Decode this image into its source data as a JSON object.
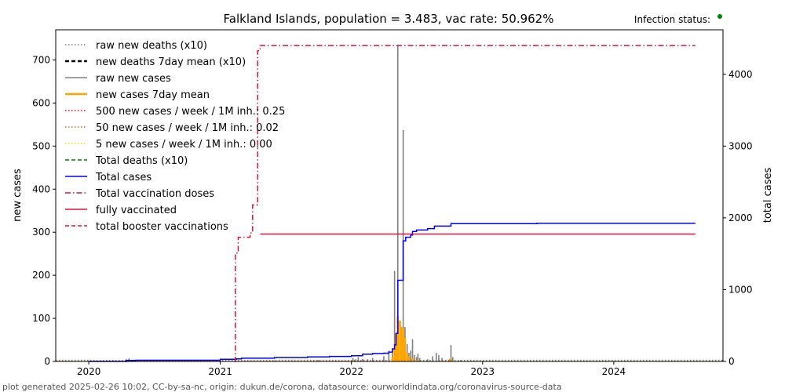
{
  "chart_data": {
    "type": "line",
    "title": "Falkland Islands, population = 3.483, vac rate: 50.962%",
    "status_label": "Infection status:",
    "status_color": "#008000",
    "ylabel_left": "new cases",
    "ylabel_right": "total cases",
    "xlim": [
      "2019-10-01",
      "2024-10-31"
    ],
    "ylim_left": [
      0,
      770
    ],
    "ylim_right": [
      0,
      4620
    ],
    "x_ticks": [
      {
        "date": "2020-01-01",
        "label": "2020"
      },
      {
        "date": "2021-01-01",
        "label": "2021"
      },
      {
        "date": "2022-01-01",
        "label": "2022"
      },
      {
        "date": "2023-01-01",
        "label": "2023"
      },
      {
        "date": "2024-01-01",
        "label": "2024"
      }
    ],
    "y_ticks_left": [
      0,
      100,
      200,
      300,
      400,
      500,
      600,
      700
    ],
    "y_ticks_right": [
      0,
      1000,
      2000,
      3000,
      4000
    ],
    "legend_position": "upper-left",
    "legend": [
      {
        "label": "raw new deaths (x10)",
        "color": "#808080",
        "style": "dotted"
      },
      {
        "label": "new deaths 7day mean (x10)",
        "color": "#000000",
        "style": "dashed-bold"
      },
      {
        "label": "raw new cases",
        "color": "#808080",
        "style": "solid"
      },
      {
        "label": "new cases 7day mean",
        "color": "#ffa500",
        "style": "solid-bold"
      },
      {
        "label": "500 new cases / week / 1M inh.: 0.25",
        "color": "#ff0000",
        "style": "dotted"
      },
      {
        "label": "50 new cases / week / 1M inh.: 0.02",
        "color": "#d2691e",
        "style": "dotted"
      },
      {
        "label": "5 new cases / week / 1M inh.: 0.00",
        "color": "#ffd700",
        "style": "dotted"
      },
      {
        "label": "Total deaths (x10)",
        "color": "#008000",
        "style": "dashed"
      },
      {
        "label": "Total cases",
        "color": "#0000ff",
        "style": "solid"
      },
      {
        "label": "Total vaccination doses",
        "color": "#dc143c",
        "style": "dashdot"
      },
      {
        "label": "fully vaccinated",
        "color": "#dc143c",
        "style": "solid"
      },
      {
        "label": "total booster vaccinations",
        "color": "#dc143c",
        "style": "dashed"
      }
    ],
    "series": [
      {
        "name": "raw new cases",
        "axis": "left",
        "kind": "spikes",
        "points": [
          [
            "2020-04-15",
            5
          ],
          [
            "2020-04-22",
            7
          ],
          [
            "2020-05-05",
            3
          ],
          [
            "2021-02-10",
            2
          ],
          [
            "2021-06-01",
            2
          ],
          [
            "2021-10-01",
            3
          ],
          [
            "2022-01-05",
            8
          ],
          [
            "2022-01-12",
            5
          ],
          [
            "2022-01-20",
            10
          ],
          [
            "2022-02-01",
            6
          ],
          [
            "2022-02-15",
            5
          ],
          [
            "2022-03-01",
            8
          ],
          [
            "2022-04-01",
            12
          ],
          [
            "2022-04-15",
            25
          ],
          [
            "2022-04-25",
            30
          ],
          [
            "2022-05-01",
            210
          ],
          [
            "2022-05-05",
            60
          ],
          [
            "2022-05-10",
            735
          ],
          [
            "2022-05-16",
            90
          ],
          [
            "2022-05-20",
            65
          ],
          [
            "2022-05-25",
            537
          ],
          [
            "2022-05-30",
            80
          ],
          [
            "2022-06-05",
            40
          ],
          [
            "2022-06-10",
            20
          ],
          [
            "2022-06-15",
            25
          ],
          [
            "2022-06-20",
            52
          ],
          [
            "2022-06-25",
            15
          ],
          [
            "2022-07-01",
            10
          ],
          [
            "2022-07-05",
            18
          ],
          [
            "2022-07-10",
            8
          ],
          [
            "2022-08-01",
            5
          ],
          [
            "2022-08-15",
            12
          ],
          [
            "2022-08-25",
            20
          ],
          [
            "2022-09-01",
            15
          ],
          [
            "2022-09-10",
            8
          ],
          [
            "2022-10-01",
            5
          ],
          [
            "2022-10-05",
            38
          ],
          [
            "2022-10-10",
            10
          ],
          [
            "2022-11-01",
            3
          ]
        ]
      },
      {
        "name": "new cases 7day mean",
        "axis": "left",
        "kind": "spikes",
        "points": [
          [
            "2022-04-25",
            10
          ],
          [
            "2022-05-01",
            30
          ],
          [
            "2022-05-05",
            65
          ],
          [
            "2022-05-10",
            105
          ],
          [
            "2022-05-16",
            95
          ],
          [
            "2022-05-20",
            80
          ],
          [
            "2022-05-25",
            78
          ],
          [
            "2022-05-30",
            55
          ],
          [
            "2022-06-05",
            20
          ],
          [
            "2022-06-10",
            12
          ],
          [
            "2022-06-20",
            8
          ],
          [
            "2022-07-01",
            4
          ],
          [
            "2022-10-05",
            6
          ]
        ]
      },
      {
        "name": "Total cases",
        "axis": "right",
        "kind": "step",
        "points": [
          [
            "2019-12-31",
            0
          ],
          [
            "2020-04-15",
            13
          ],
          [
            "2020-05-10",
            16
          ],
          [
            "2021-01-01",
            29
          ],
          [
            "2021-02-15",
            35
          ],
          [
            "2021-03-01",
            45
          ],
          [
            "2021-06-01",
            55
          ],
          [
            "2021-09-01",
            62
          ],
          [
            "2021-11-01",
            70
          ],
          [
            "2022-01-01",
            80
          ],
          [
            "2022-02-01",
            100
          ],
          [
            "2022-03-01",
            110
          ],
          [
            "2022-04-01",
            115
          ],
          [
            "2022-04-15",
            130
          ],
          [
            "2022-04-25",
            175
          ],
          [
            "2022-05-01",
            230
          ],
          [
            "2022-05-05",
            390
          ],
          [
            "2022-05-10",
            1130
          ],
          [
            "2022-05-25",
            1680
          ],
          [
            "2022-06-01",
            1730
          ],
          [
            "2022-06-15",
            1760
          ],
          [
            "2022-06-20",
            1810
          ],
          [
            "2022-07-01",
            1830
          ],
          [
            "2022-08-01",
            1850
          ],
          [
            "2022-08-20",
            1885
          ],
          [
            "2022-10-05",
            1920
          ],
          [
            "2023-06-01",
            1925
          ],
          [
            "2024-08-15",
            1925
          ]
        ]
      },
      {
        "name": "Total vaccination doses",
        "axis": "right",
        "kind": "step",
        "points": [
          [
            "2021-02-10",
            0
          ],
          [
            "2021-02-12",
            1510
          ],
          [
            "2021-02-20",
            1730
          ],
          [
            "2021-03-25",
            1790
          ],
          [
            "2021-04-01",
            2180
          ],
          [
            "2021-04-15",
            4330
          ],
          [
            "2021-04-22",
            4400
          ],
          [
            "2024-08-15",
            4400
          ]
        ]
      },
      {
        "name": "fully vaccinated",
        "axis": "right",
        "kind": "step",
        "points": [
          [
            "2021-04-22",
            1775
          ],
          [
            "2024-08-15",
            1775
          ]
        ]
      }
    ]
  },
  "footer": "plot generated 2025-02-26 10:02, CC-by-sa-nc, origin: dukun.de/corona, datasource: ourworldindata.org/coronavirus-source-data"
}
